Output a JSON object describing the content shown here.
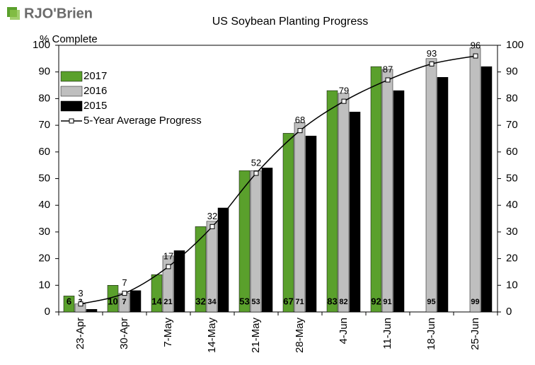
{
  "chart_data": {
    "type": "bar",
    "logo": "RJO'Brien",
    "title": "US Soybean Planting Progress",
    "y_label": "% Complete",
    "categories": [
      "23-Apr",
      "30-Apr",
      "7-May",
      "14-May",
      "21-May",
      "28-May",
      "4-Jun",
      "11-Jun",
      "18-Jun",
      "25-Jun"
    ],
    "series": [
      {
        "name": "2017",
        "color": "#5aa02c",
        "type": "bar",
        "show_labels": true,
        "values": [
          6,
          10,
          14,
          32,
          53,
          67,
          83,
          92,
          null,
          null
        ]
      },
      {
        "name": "2016",
        "color": "#bfbfbf",
        "type": "bar",
        "show_labels": true,
        "values": [
          3,
          7,
          21,
          34,
          53,
          71,
          82,
          91,
          95,
          99
        ]
      },
      {
        "name": "2015",
        "color": "#000000",
        "type": "bar",
        "show_labels": false,
        "values": [
          1,
          8,
          23,
          39,
          54,
          66,
          75,
          83,
          88,
          92
        ]
      },
      {
        "name": "5-Year Average Progress",
        "color": "#000000",
        "type": "line",
        "show_labels": true,
        "values": [
          3,
          7,
          17,
          32,
          52,
          68,
          79,
          87,
          93,
          96
        ]
      }
    ],
    "ylim": [
      0,
      100
    ],
    "yticks": [
      0,
      10,
      20,
      30,
      40,
      50,
      60,
      70,
      80,
      90,
      100
    ],
    "y2lim": [
      0,
      100
    ],
    "y2ticks": [
      0,
      10,
      20,
      30,
      40,
      50,
      60,
      70,
      80,
      90,
      100
    ],
    "grid": false,
    "legend": "upper-left"
  }
}
